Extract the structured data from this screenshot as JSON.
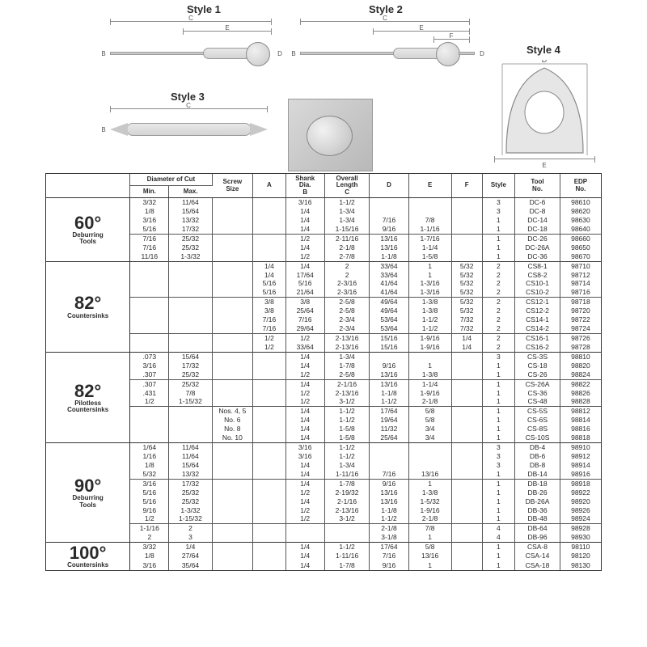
{
  "styles": {
    "s1": "Style 1",
    "s2": "Style 2",
    "s3": "Style 3",
    "s4": "Style 4"
  },
  "dim_letters": {
    "b": "B",
    "c": "C",
    "d": "D",
    "e": "E",
    "f": "F"
  },
  "colors": {
    "border": "#333333",
    "cell_border": "#555555",
    "text": "#2a2a2a"
  },
  "fontsize": {
    "header": 8,
    "body": 8.5,
    "angle": 22,
    "sub": 8
  },
  "headers": {
    "diam": "Diameter of Cut",
    "diam_min": "Min.",
    "diam_max": "Max.",
    "screw": "Screw\nSize",
    "a": "A",
    "shank": "Shank\nDia.\nB",
    "oal": "Overall\nLength\nC",
    "d": "D",
    "e": "E",
    "f": "F",
    "style": "Style",
    "tool": "Tool\nNo.",
    "edp": "EDP\nNo."
  },
  "sections": [
    {
      "angle": "60°",
      "sub": "Deburring\nTools",
      "groups": [
        {
          "rows": [
            {
              "min": "3/32",
              "max": "11/64",
              "screw": "",
              "a": "",
              "b": "3/16",
              "c": "1-1/2",
              "d": "",
              "e": "",
              "f": "",
              "style": "3",
              "tool": "DC-6",
              "edp": "98610"
            },
            {
              "min": "1/8",
              "max": "15/64",
              "screw": "",
              "a": "",
              "b": "1/4",
              "c": "1-3/4",
              "d": "",
              "e": "",
              "f": "",
              "style": "3",
              "tool": "DC-8",
              "edp": "98620"
            },
            {
              "min": "3/16",
              "max": "13/32",
              "screw": "",
              "a": "",
              "b": "1/4",
              "c": "1-3/4",
              "d": "7/16",
              "e": "7/8",
              "f": "",
              "style": "1",
              "tool": "DC-14",
              "edp": "98630"
            },
            {
              "min": "5/16",
              "max": "17/32",
              "screw": "",
              "a": "",
              "b": "1/4",
              "c": "1-15/16",
              "d": "9/16",
              "e": "1-1/16",
              "f": "",
              "style": "1",
              "tool": "DC-18",
              "edp": "98640"
            }
          ]
        },
        {
          "rows": [
            {
              "min": "7/16",
              "max": "25/32",
              "screw": "",
              "a": "",
              "b": "1/2",
              "c": "2-11/16",
              "d": "13/16",
              "e": "1-7/16",
              "f": "",
              "style": "1",
              "tool": "DC-26",
              "edp": "98660"
            },
            {
              "min": "7/16",
              "max": "25/32",
              "screw": "",
              "a": "",
              "b": "1/4",
              "c": "2-1/8",
              "d": "13/16",
              "e": "1-1/4",
              "f": "",
              "style": "1",
              "tool": "DC-26A",
              "edp": "98650"
            },
            {
              "min": "11/16",
              "max": "1-3/32",
              "screw": "",
              "a": "",
              "b": "1/2",
              "c": "2-7/8",
              "d": "1-1/8",
              "e": "1-5/8",
              "f": "",
              "style": "1",
              "tool": "DC-36",
              "edp": "98670"
            }
          ]
        }
      ]
    },
    {
      "angle": "82°",
      "sub": "Countersinks",
      "groups": [
        {
          "rows": [
            {
              "min": "",
              "max": "",
              "screw": "",
              "a": "1/4",
              "b": "1/4",
              "c": "3/8",
              "d": "2",
              "e": "33/64",
              "f": "1",
              "g": "5/32",
              "style": "2",
              "tool": "CS8-1",
              "edp": "98710"
            },
            {
              "min": "",
              "max": "",
              "screw": "",
              "a": "1/4",
              "b": "17/64",
              "c": "3/8",
              "d": "2",
              "e": "33/64",
              "f": "1",
              "g": "5/32",
              "style": "2",
              "tool": "CS8-2",
              "edp": "98712"
            },
            {
              "min": "",
              "max": "",
              "screw": "",
              "a": "5/16",
              "b": "5/16",
              "c": "3/8",
              "d": "2-3/16",
              "e": "41/64",
              "f": "1-3/16",
              "g": "5/32",
              "style": "2",
              "tool": "CS10-1",
              "edp": "98714"
            },
            {
              "min": "",
              "max": "",
              "screw": "",
              "a": "5/16",
              "b": "21/64",
              "c": "3/8",
              "d": "2-3/16",
              "e": "41/64",
              "f": "1-3/16",
              "g": "5/32",
              "style": "2",
              "tool": "CS10-2",
              "edp": "98716"
            }
          ]
        },
        {
          "rows": [
            {
              "min": "",
              "max": "",
              "screw": "",
              "a": "3/8",
              "b": "3/8",
              "c": "1/2",
              "d": "2-5/8",
              "e": "49/64",
              "f": "1-3/8",
              "g": "5/32",
              "style": "2",
              "tool": "CS12-1",
              "edp": "98718"
            },
            {
              "min": "",
              "max": "",
              "screw": "",
              "a": "3/8",
              "b": "25/64",
              "c": "1/2",
              "d": "2-5/8",
              "e": "49/64",
              "f": "1-3/8",
              "g": "5/32",
              "style": "2",
              "tool": "CS12-2",
              "edp": "98720"
            },
            {
              "min": "",
              "max": "",
              "screw": "",
              "a": "7/16",
              "b": "7/16",
              "c": "1/2",
              "d": "2-3/4",
              "e": "53/64",
              "f": "1-1/2",
              "g": "7/32",
              "style": "2",
              "tool": "CS14-1",
              "edp": "98722"
            },
            {
              "min": "",
              "max": "",
              "screw": "",
              "a": "7/16",
              "b": "29/64",
              "c": "1/2",
              "d": "2-3/4",
              "e": "53/64",
              "f": "1-1/2",
              "g": "7/32",
              "style": "2",
              "tool": "CS14-2",
              "edp": "98724"
            }
          ]
        },
        {
          "rows": [
            {
              "min": "",
              "max": "",
              "screw": "",
              "a": "1/2",
              "b": "1/2",
              "c": "1/2",
              "d": "2-13/16",
              "e": "15/16",
              "f": "1-9/16",
              "g": "1/4",
              "style": "2",
              "tool": "CS16-1",
              "edp": "98726"
            },
            {
              "min": "",
              "max": "",
              "screw": "",
              "a": "1/2",
              "b": "33/64",
              "c": "1/2",
              "d": "2-13/16",
              "e": "15/16",
              "f": "1-9/16",
              "g": "1/4",
              "style": "2",
              "tool": "CS16-2",
              "edp": "98728"
            }
          ]
        }
      ]
    },
    {
      "angle": "82°",
      "sub": "Pilotless\nCountersinks",
      "groups": [
        {
          "rows": [
            {
              "min": ".073",
              "max": "15/64",
              "screw": "",
              "a": "",
              "b": "1/4",
              "c": "1-3/4",
              "d": "",
              "e": "",
              "f": "",
              "style": "3",
              "tool": "CS-3S",
              "edp": "98810"
            },
            {
              "min": "3/16",
              "max": "17/32",
              "screw": "",
              "a": "",
              "b": "1/4",
              "c": "1-7/8",
              "d": "9/16",
              "e": "1",
              "f": "",
              "style": "1",
              "tool": "CS-18",
              "edp": "98820"
            },
            {
              "min": ".307",
              "max": "25/32",
              "screw": "",
              "a": "",
              "b": "1/2",
              "c": "2-5/8",
              "d": "13/16",
              "e": "1-3/8",
              "f": "",
              "style": "1",
              "tool": "CS-26",
              "edp": "98824"
            }
          ]
        },
        {
          "rows": [
            {
              "min": ".307",
              "max": "25/32",
              "screw": "",
              "a": "",
              "b": "1/4",
              "c": "2-1/16",
              "d": "13/16",
              "e": "1-1/4",
              "f": "",
              "style": "1",
              "tool": "CS-26A",
              "edp": "98822"
            },
            {
              "min": ".431",
              "max": "7/8",
              "screw": "",
              "a": "",
              "b": "1/2",
              "c": "2-13/16",
              "d": "1-1/8",
              "e": "1-9/16",
              "f": "",
              "style": "1",
              "tool": "CS-36",
              "edp": "98826"
            },
            {
              "min": "1/2",
              "max": "1-15/32",
              "screw": "",
              "a": "",
              "b": "1/2",
              "c": "3-1/2",
              "d": "1-1/2",
              "e": "2-1/8",
              "f": "",
              "style": "1",
              "tool": "CS-48",
              "edp": "98828"
            }
          ]
        },
        {
          "rows": [
            {
              "min": "",
              "max": "",
              "screw": "Nos. 4, 5",
              "a": "",
              "b": "1/4",
              "c": "1-1/2",
              "d": "17/64",
              "e": "5/8",
              "f": "",
              "style": "1",
              "tool": "CS-5S",
              "edp": "98812"
            },
            {
              "min": "",
              "max": "",
              "screw": "No. 6",
              "a": "",
              "b": "1/4",
              "c": "1-1/2",
              "d": "19/64",
              "e": "5/8",
              "f": "",
              "style": "1",
              "tool": "CS-6S",
              "edp": "98814"
            },
            {
              "min": "",
              "max": "",
              "screw": "No. 8",
              "a": "",
              "b": "1/4",
              "c": "1-5/8",
              "d": "11/32",
              "e": "3/4",
              "f": "",
              "style": "1",
              "tool": "CS-8S",
              "edp": "98816"
            },
            {
              "min": "",
              "max": "",
              "screw": "No. 10",
              "a": "",
              "b": "1/4",
              "c": "1-5/8",
              "d": "25/64",
              "e": "3/4",
              "f": "",
              "style": "1",
              "tool": "CS-10S",
              "edp": "98818"
            }
          ]
        }
      ]
    },
    {
      "angle": "90°",
      "sub": "Deburring\nTools",
      "groups": [
        {
          "rows": [
            {
              "min": "1/64",
              "max": "11/64",
              "screw": "",
              "a": "",
              "b": "3/16",
              "c": "1-1/2",
              "d": "",
              "e": "",
              "f": "",
              "style": "3",
              "tool": "DB-4",
              "edp": "98910"
            },
            {
              "min": "1/16",
              "max": "11/64",
              "screw": "",
              "a": "",
              "b": "3/16",
              "c": "1-1/2",
              "d": "",
              "e": "",
              "f": "",
              "style": "3",
              "tool": "DB-6",
              "edp": "98912"
            },
            {
              "min": "1/8",
              "max": "15/64",
              "screw": "",
              "a": "",
              "b": "1/4",
              "c": "1-3/4",
              "d": "",
              "e": "",
              "f": "",
              "style": "3",
              "tool": "DB-8",
              "edp": "98914"
            },
            {
              "min": "5/32",
              "max": "13/32",
              "screw": "",
              "a": "",
              "b": "1/4",
              "c": "1-11/16",
              "d": "7/16",
              "e": "13/16",
              "f": "",
              "style": "1",
              "tool": "DB-14",
              "edp": "98916"
            }
          ]
        },
        {
          "rows": [
            {
              "min": "3/16",
              "max": "17/32",
              "screw": "",
              "a": "",
              "b": "1/4",
              "c": "1-7/8",
              "d": "9/16",
              "e": "1",
              "f": "",
              "style": "1",
              "tool": "DB-18",
              "edp": "98918"
            },
            {
              "min": "5/16",
              "max": "25/32",
              "screw": "",
              "a": "",
              "b": "1/2",
              "c": "2-19/32",
              "d": "13/16",
              "e": "1-3/8",
              "f": "",
              "style": "1",
              "tool": "DB-26",
              "edp": "98922"
            },
            {
              "min": "5/16",
              "max": "25/32",
              "screw": "",
              "a": "",
              "b": "1/4",
              "c": "2-1/16",
              "d": "13/16",
              "e": "1-5/32",
              "f": "",
              "style": "1",
              "tool": "DB-26A",
              "edp": "98920"
            },
            {
              "min": "9/16",
              "max": "1-3/32",
              "screw": "",
              "a": "",
              "b": "1/2",
              "c": "2-13/16",
              "d": "1-1/8",
              "e": "1-9/16",
              "f": "",
              "style": "1",
              "tool": "DB-36",
              "edp": "98926"
            },
            {
              "min": "1/2",
              "max": "1-15/32",
              "screw": "",
              "a": "",
              "b": "1/2",
              "c": "3-1/2",
              "d": "1-1/2",
              "e": "2-1/8",
              "f": "",
              "style": "1",
              "tool": "DB-48",
              "edp": "98924"
            }
          ]
        },
        {
          "rows": [
            {
              "min": "1-1/16",
              "max": "2",
              "screw": "",
              "a": "",
              "b": "",
              "c": "",
              "d": "2-1/8",
              "e": "7/8",
              "f": "",
              "style": "4",
              "tool": "DB-64",
              "edp": "98928"
            },
            {
              "min": "2",
              "max": "3",
              "screw": "",
              "a": "",
              "b": "",
              "c": "",
              "d": "3-1/8",
              "e": "1",
              "f": "",
              "style": "4",
              "tool": "DB-96",
              "edp": "98930"
            }
          ]
        }
      ]
    },
    {
      "angle": "100°",
      "sub": "Countersinks",
      "groups": [
        {
          "rows": [
            {
              "min": "3/32",
              "max": "1/4",
              "screw": "",
              "a": "",
              "b": "1/4",
              "c": "1-1/2",
              "d": "17/64",
              "e": "5/8",
              "f": "",
              "style": "1",
              "tool": "CSA-8",
              "edp": "98110"
            },
            {
              "min": "1/8",
              "max": "27/64",
              "screw": "",
              "a": "",
              "b": "1/4",
              "c": "1-11/16",
              "d": "7/16",
              "e": "13/16",
              "f": "",
              "style": "1",
              "tool": "CSA-14",
              "edp": "98120"
            },
            {
              "min": "3/16",
              "max": "35/64",
              "screw": "",
              "a": "",
              "b": "1/4",
              "c": "1-7/8",
              "d": "9/16",
              "e": "1",
              "f": "",
              "style": "1",
              "tool": "CSA-18",
              "edp": "98130"
            }
          ]
        }
      ]
    }
  ]
}
